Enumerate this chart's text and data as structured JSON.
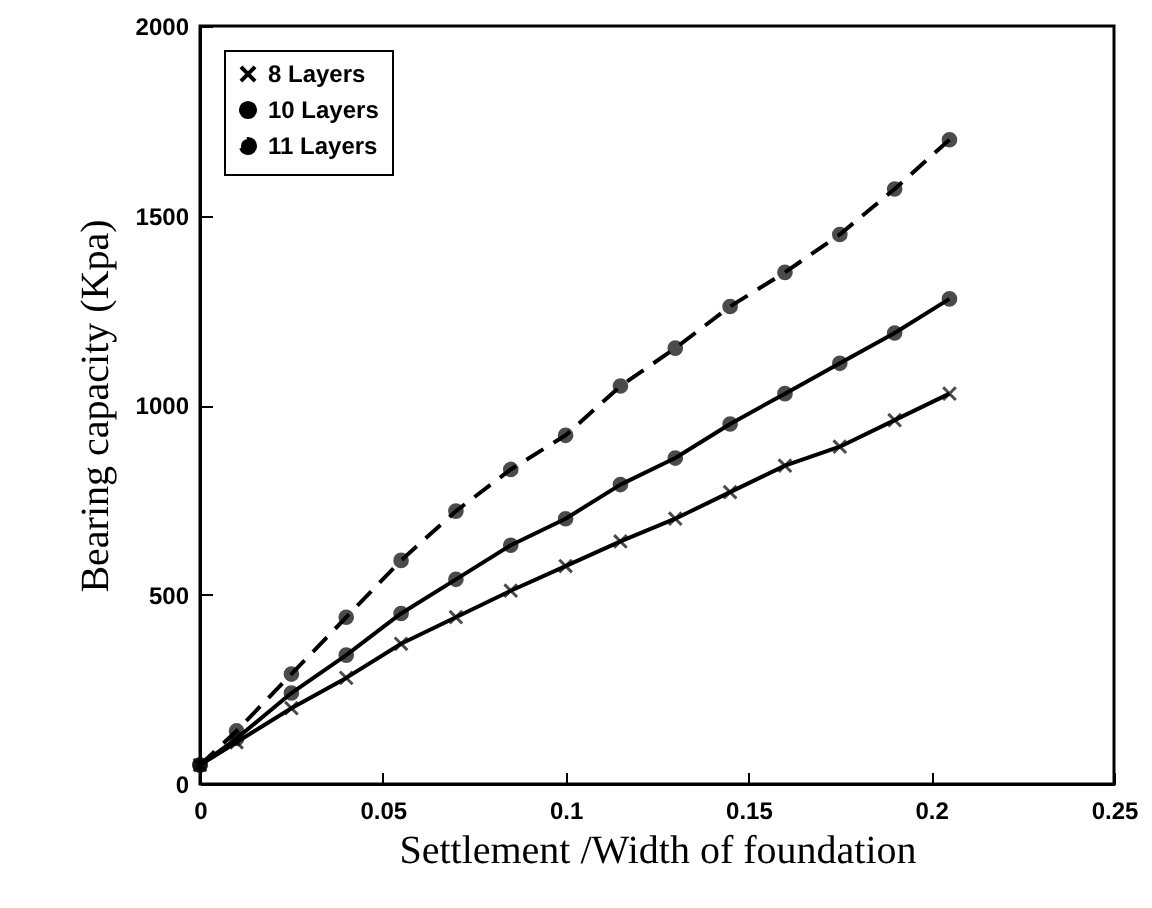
{
  "chart_data": {
    "type": "line",
    "xlabel": "Settlement /Width of foundation",
    "ylabel": "Bearing capacity (Kpa)",
    "x": [
      0,
      0.01,
      0.025,
      0.04,
      0.055,
      0.07,
      0.085,
      0.1,
      0.115,
      0.13,
      0.145,
      0.16,
      0.175,
      0.19,
      0.205
    ],
    "series": [
      {
        "name": "8 Layers",
        "color": "#000000",
        "marker": "cross",
        "line_style": "solid",
        "values": [
          50,
          110,
          200,
          280,
          370,
          440,
          510,
          575,
          640,
          700,
          770,
          840,
          890,
          960,
          1030
        ]
      },
      {
        "name": "10 Layers",
        "color": "#000000",
        "marker": "circle",
        "line_style": "solid",
        "values": [
          50,
          120,
          240,
          340,
          450,
          540,
          630,
          700,
          790,
          860,
          950,
          1030,
          1110,
          1190,
          1280
        ]
      },
      {
        "name": "11 Layers",
        "color": "#000000",
        "marker": "circle",
        "line_style": "dashed",
        "values": [
          50,
          140,
          290,
          440,
          590,
          720,
          830,
          920,
          1050,
          1150,
          1260,
          1350,
          1450,
          1570,
          1700
        ]
      }
    ],
    "xlim": [
      0,
      0.25
    ],
    "xticks": [
      0,
      0.05,
      0.1,
      0.15,
      0.2,
      0.25
    ],
    "ylim": [
      0,
      2000
    ],
    "yticks": [
      0,
      500,
      1000,
      1500,
      2000
    ],
    "legend": "top left",
    "grid": false
  }
}
